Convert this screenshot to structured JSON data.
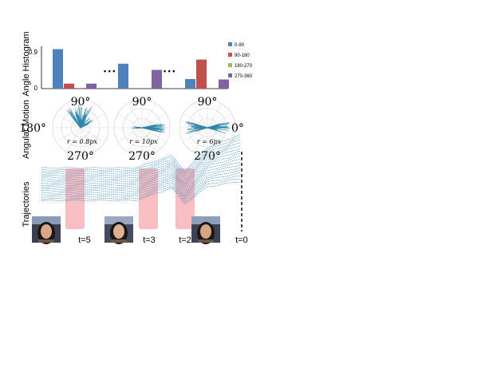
{
  "row_labels": {
    "histogram": "Angle Histogram",
    "motion": "Angular Motion",
    "trajectories": "Trajectories"
  },
  "histogram": {
    "y_ticks": [
      "0.9",
      "0"
    ],
    "legend": [
      {
        "label": "0-90",
        "color": "#4f81bd"
      },
      {
        "label": "90-180",
        "color": "#c0504d"
      },
      {
        "label": "180-270",
        "color": "#9bbb59"
      },
      {
        "label": "270-360",
        "color": "#8064a2"
      }
    ],
    "groups": [
      {
        "values": [
          0.95,
          0.12,
          0.0,
          0.12
        ]
      },
      {
        "values": [
          0.6,
          0.0,
          0.0,
          0.45
        ]
      },
      {
        "values": [
          0.23,
          0.7,
          0.0,
          0.22
        ]
      }
    ],
    "separator": "• • •",
    "ymax": 1.0
  },
  "polar": [
    {
      "top": "90°",
      "bottom": "270°",
      "left": "180°",
      "right": "",
      "radius": "r = 0.8px",
      "pattern": "up",
      "color": "#2e86a8"
    },
    {
      "top": "90°",
      "bottom": "270°",
      "left": "",
      "right": "",
      "radius": "r = 10px",
      "pattern": "right",
      "color": "#2e86a8"
    },
    {
      "top": "90°",
      "bottom": "270°",
      "left": "",
      "right": "0°",
      "radius": "r = 6px",
      "pattern": "flat",
      "color": "#2e86a8"
    }
  ],
  "timeline": {
    "labels": [
      "t=5",
      "t=3",
      "t=2",
      "t=0"
    ],
    "line_color": "#2a7db8",
    "highlight_color": "#f7b7bb"
  }
}
